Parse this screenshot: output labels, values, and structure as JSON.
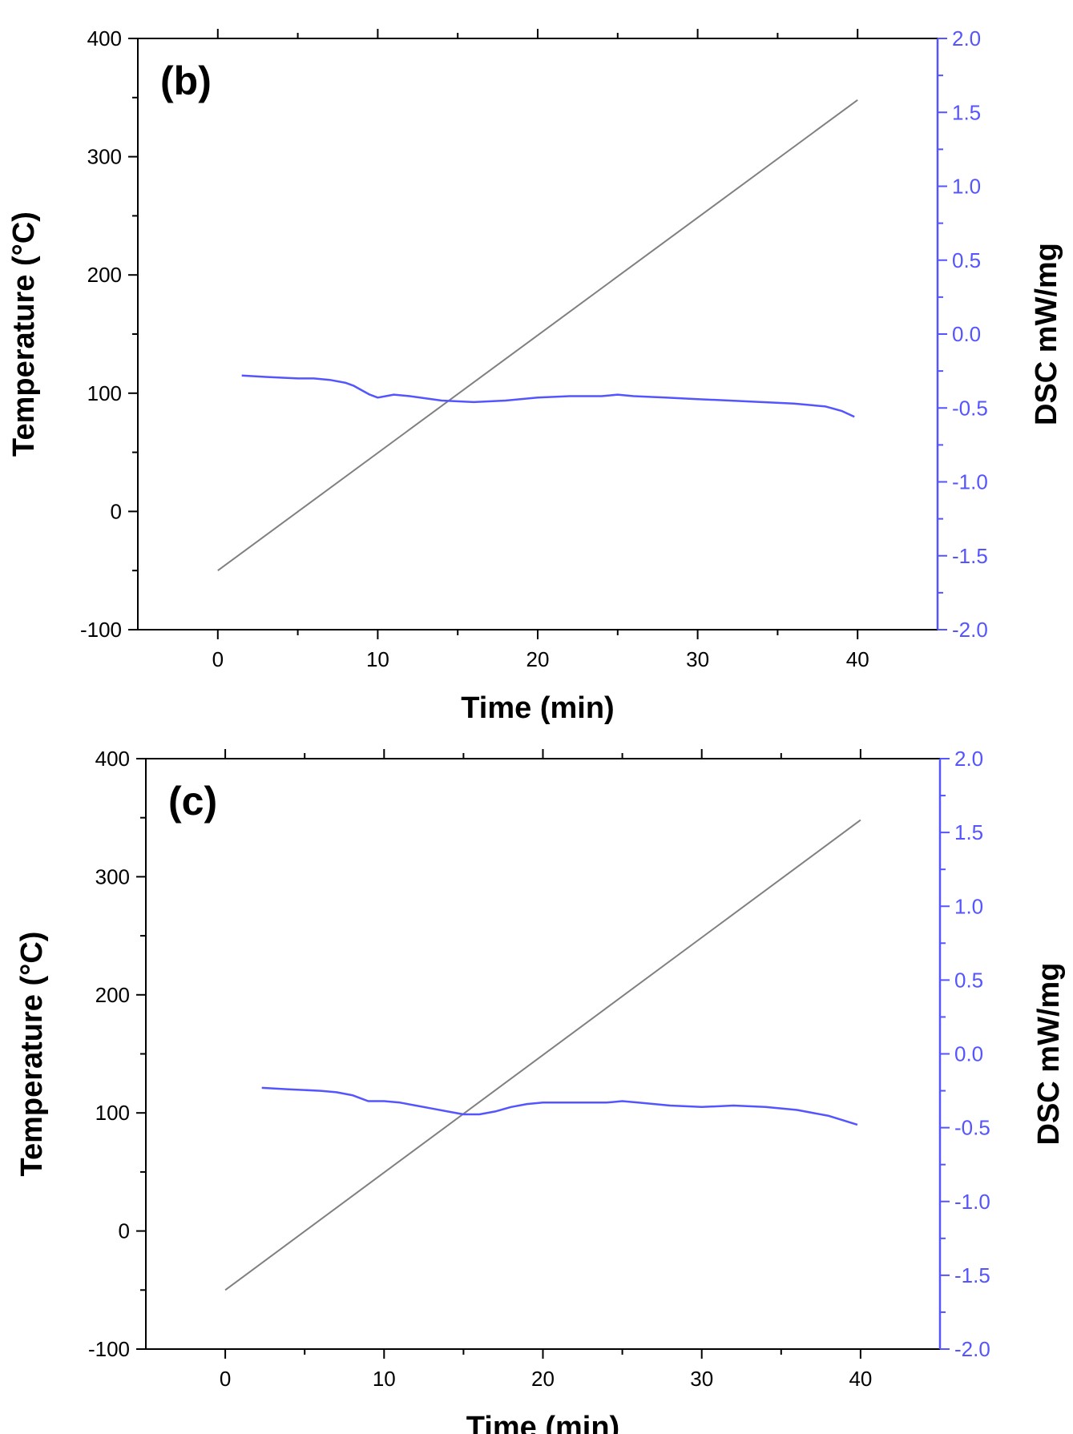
{
  "chart_data": [
    {
      "type": "line",
      "panel_label": "(b)",
      "xlabel": "Time (min)",
      "ylabel_left": "Temperature (°C)",
      "ylabel_right": "DSC mW/mg",
      "xlim": [
        -5,
        45
      ],
      "ylim_left": [
        -100,
        400
      ],
      "ylim_right": [
        -2.0,
        2.0
      ],
      "x_ticks": [
        "0",
        "10",
        "20",
        "30",
        "40"
      ],
      "y_left_ticks": [
        "-100",
        "0",
        "100",
        "200",
        "300",
        "400"
      ],
      "y_right_ticks": [
        "-2.0",
        "-1.5",
        "-1.0",
        "-0.5",
        "0.0",
        "0.5",
        "1.0",
        "1.5",
        "2.0"
      ],
      "grid": false,
      "series": [
        {
          "name": "Temperature",
          "axis": "left",
          "color": "#808080",
          "x": [
            0,
            40
          ],
          "y": [
            -50,
            348
          ]
        },
        {
          "name": "DSC",
          "axis": "right",
          "color": "#5555ff",
          "x": [
            1.5,
            3,
            5,
            6,
            7,
            8,
            8.5,
            9,
            9.5,
            10,
            10.5,
            11,
            12,
            14,
            16,
            18,
            20,
            22,
            24,
            25,
            26,
            28,
            30,
            32,
            34,
            36,
            38,
            39,
            39.8
          ],
          "y": [
            -0.28,
            -0.29,
            -0.3,
            -0.3,
            -0.31,
            -0.33,
            -0.35,
            -0.38,
            -0.41,
            -0.43,
            -0.42,
            -0.41,
            -0.42,
            -0.45,
            -0.46,
            -0.45,
            -0.43,
            -0.42,
            -0.42,
            -0.41,
            -0.42,
            -0.43,
            -0.44,
            -0.45,
            -0.46,
            -0.47,
            -0.49,
            -0.52,
            -0.56
          ]
        }
      ]
    },
    {
      "type": "line",
      "panel_label": "(c)",
      "xlabel": "Time (min)",
      "ylabel_left": "Temperature (°C)",
      "ylabel_right": "DSC mW/mg",
      "xlim": [
        -5,
        45
      ],
      "ylim_left": [
        -100,
        400
      ],
      "ylim_right": [
        -2.0,
        2.0
      ],
      "x_ticks": [
        "0",
        "10",
        "20",
        "30",
        "40"
      ],
      "y_left_ticks": [
        "-100",
        "0",
        "100",
        "200",
        "300",
        "400"
      ],
      "y_right_ticks": [
        "-2.0",
        "-1.5",
        "-1.0",
        "-0.5",
        "0.0",
        "0.5",
        "1.0",
        "1.5",
        "2.0"
      ],
      "grid": false,
      "series": [
        {
          "name": "Temperature",
          "axis": "left",
          "color": "#808080",
          "x": [
            0,
            40
          ],
          "y": [
            -50,
            348
          ]
        },
        {
          "name": "DSC",
          "axis": "right",
          "color": "#5555ff",
          "x": [
            2.3,
            4,
            6,
            7,
            8,
            8.5,
            9,
            9.5,
            10,
            11,
            12,
            13,
            14,
            15,
            16,
            17,
            18,
            19,
            20,
            22,
            24,
            25,
            26,
            28,
            30,
            32,
            34,
            36,
            38,
            39.8
          ],
          "y": [
            -0.23,
            -0.24,
            -0.25,
            -0.26,
            -0.28,
            -0.3,
            -0.32,
            -0.32,
            -0.32,
            -0.33,
            -0.35,
            -0.37,
            -0.39,
            -0.41,
            -0.41,
            -0.39,
            -0.36,
            -0.34,
            -0.33,
            -0.33,
            -0.33,
            -0.32,
            -0.33,
            -0.35,
            -0.36,
            -0.35,
            -0.36,
            -0.38,
            -0.42,
            -0.48
          ]
        }
      ]
    }
  ]
}
